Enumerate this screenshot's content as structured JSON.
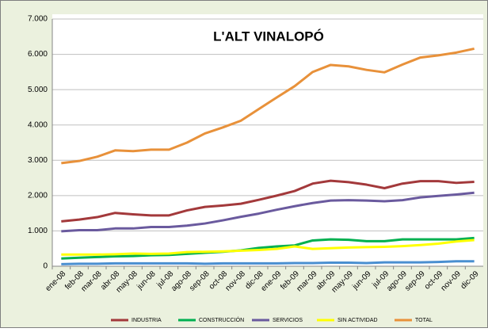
{
  "chart_data": {
    "type": "line",
    "title": "L'ALT VINALOPÓ",
    "categories": [
      "ene-08",
      "feb-08",
      "mar-08",
      "abr-08",
      "may-08",
      "jun-08",
      "jul-08",
      "ago-08",
      "sep-08",
      "oct-08",
      "nov-08",
      "dic-08",
      "ene-09",
      "feb-09",
      "mar-09",
      "abr-09",
      "may-09",
      "jun-09",
      "jul-09",
      "ago-09",
      "sep-09",
      "oct-09",
      "nov-09",
      "dic-09"
    ],
    "series": [
      {
        "name": null,
        "color": "#4a8fd0",
        "values": [
          60,
          70,
          70,
          80,
          80,
          80,
          80,
          80,
          70,
          80,
          80,
          80,
          80,
          90,
          90,
          100,
          100,
          90,
          110,
          110,
          110,
          120,
          140,
          140
        ]
      },
      {
        "name": "INDUSTRIA",
        "color": "#a3393b",
        "values": [
          1270,
          1320,
          1390,
          1510,
          1470,
          1440,
          1440,
          1580,
          1680,
          1720,
          1770,
          1880,
          2000,
          2130,
          2340,
          2420,
          2380,
          2310,
          2210,
          2340,
          2410,
          2410,
          2360,
          2390
        ]
      },
      {
        "name": "CONSTRUCCIÓN",
        "color": "#00b050",
        "values": [
          220,
          240,
          260,
          280,
          290,
          310,
          320,
          350,
          380,
          410,
          450,
          520,
          560,
          590,
          730,
          760,
          750,
          710,
          710,
          760,
          760,
          760,
          760,
          800
        ]
      },
      {
        "name": "SERVICIOS",
        "color": "#6a5a9e",
        "values": [
          990,
          1020,
          1020,
          1070,
          1070,
          1110,
          1110,
          1150,
          1210,
          1300,
          1400,
          1490,
          1600,
          1700,
          1790,
          1860,
          1870,
          1860,
          1840,
          1870,
          1950,
          1990,
          2030,
          2080
        ]
      },
      {
        "name": "SIN ACTIVIDAD",
        "color": "#ffff00",
        "values": [
          330,
          330,
          330,
          340,
          360,
          350,
          360,
          400,
          410,
          420,
          440,
          460,
          490,
          560,
          490,
          510,
          530,
          540,
          550,
          570,
          600,
          640,
          700,
          740
        ]
      },
      {
        "name": "TOTAL",
        "color": "#e8913a",
        "values": [
          2920,
          2980,
          3100,
          3280,
          3260,
          3300,
          3300,
          3500,
          3760,
          3930,
          4120,
          4450,
          4780,
          5100,
          5500,
          5700,
          5660,
          5560,
          5490,
          5710,
          5910,
          5970,
          6050,
          6160
        ]
      }
    ],
    "ylim": [
      0,
      7000
    ],
    "yticks": [
      0,
      {
        "value": 1000,
        "label": "1.000"
      },
      {
        "value": 2000,
        "label": "2.000"
      },
      {
        "value": 3000,
        "label": "3.000"
      },
      {
        "value": 4000,
        "label": "4.000"
      },
      {
        "value": 5000,
        "label": "5.000"
      },
      {
        "value": 6000,
        "label": "6.000"
      },
      {
        "value": 7000,
        "label": "7.000"
      }
    ],
    "grid": true,
    "legend": "bottom"
  }
}
